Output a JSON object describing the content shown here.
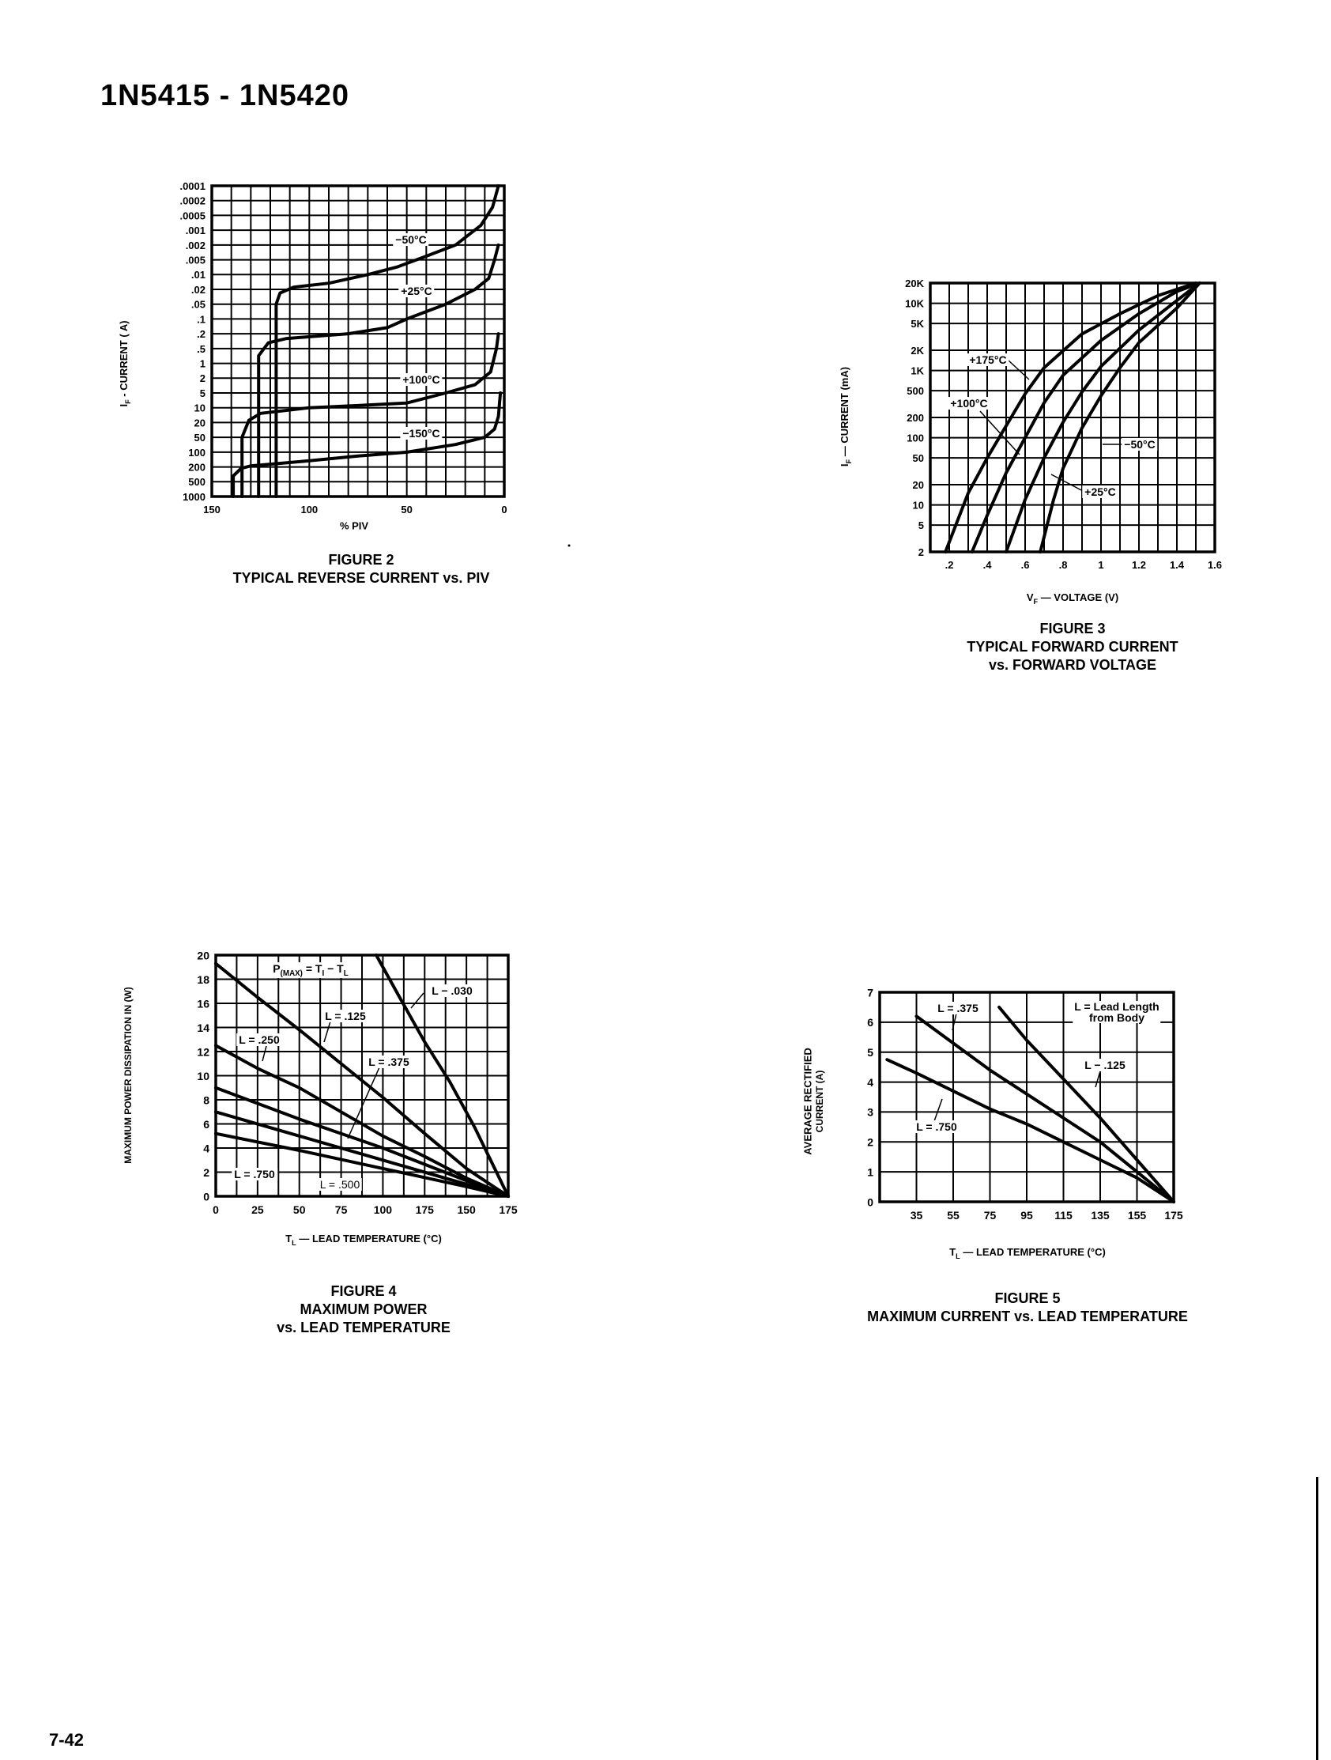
{
  "header": {
    "title": "1N5415 - 1N5420"
  },
  "footer": {
    "page_number": "7-42"
  },
  "chart_data": [
    {
      "figure": "FIGURE 2",
      "title": "TYPICAL REVERSE CURRENT vs. PIV",
      "type": "line",
      "xlabel": "% PIV",
      "ylabel": {
        "prefix": "I",
        "sub": "F",
        "rest": " - CURRENT ( A)"
      },
      "x_ticks": [
        "150",
        "100",
        "50",
        "0"
      ],
      "xlim": [
        150,
        0
      ],
      "y_ticks": [
        ".0001",
        ".0002",
        ".0005",
        ".001",
        ".002",
        ".005",
        ".01",
        ".02",
        ".05",
        ".1",
        ".2",
        ".5",
        "1",
        "2",
        "5",
        "10",
        "20",
        "50",
        "100",
        "200",
        "500",
        "1000"
      ],
      "y_scale": "log",
      "ylim": [
        0.0001,
        1000
      ],
      "y_direction": "increasing downward",
      "grid": true,
      "series": [
        {
          "name": "−50°C",
          "points": [
            [
              117,
              1000
            ],
            [
              117,
              0.05
            ],
            [
              115,
              0.025
            ],
            [
              108,
              0.018
            ],
            [
              90,
              0.015
            ],
            [
              70,
              0.01
            ],
            [
              55,
              0.007
            ],
            [
              40,
              0.004
            ],
            [
              25,
              0.002
            ],
            [
              12,
              0.0008
            ],
            [
              6,
              0.0003
            ],
            [
              3,
              0.0001
            ]
          ]
        },
        {
          "name": "+25°C",
          "points": [
            [
              126,
              1000
            ],
            [
              126,
              0.7
            ],
            [
              121,
              0.35
            ],
            [
              112,
              0.27
            ],
            [
              100,
              0.24
            ],
            [
              80,
              0.2
            ],
            [
              60,
              0.15
            ],
            [
              50,
              0.1
            ],
            [
              30,
              0.05
            ],
            [
              15,
              0.02
            ],
            [
              8,
              0.012
            ],
            [
              5,
              0.005
            ],
            [
              3,
              0.002
            ]
          ]
        },
        {
          "name": "+100°C",
          "points": [
            [
              134.5,
              1000
            ],
            [
              134.5,
              50
            ],
            [
              131,
              18
            ],
            [
              125,
              13
            ],
            [
              100,
              10
            ],
            [
              75,
              9
            ],
            [
              50,
              8
            ],
            [
              30,
              5
            ],
            [
              15,
              3
            ],
            [
              7,
              1.5
            ],
            [
              4,
              0.5
            ],
            [
              3,
              0.2
            ]
          ]
        },
        {
          "name": "−150°C",
          "points": [
            [
              139,
              1000
            ],
            [
              139,
              350
            ],
            [
              135,
              220
            ],
            [
              130,
              190
            ],
            [
              100,
              150
            ],
            [
              75,
              120
            ],
            [
              50,
              100
            ],
            [
              25,
              70
            ],
            [
              10,
              50
            ],
            [
              5,
              30
            ],
            [
              3,
              15
            ],
            [
              2,
              5
            ]
          ]
        }
      ]
    },
    {
      "figure": "FIGURE 3",
      "title": "TYPICAL FORWARD CURRENT",
      "title_line2": "vs. FORWARD VOLTAGE",
      "type": "line",
      "xlabel": {
        "prefix": "V",
        "sub": "F",
        "rest": " — VOLTAGE (V)"
      },
      "ylabel": {
        "prefix": "I",
        "sub": "F",
        "rest": " — CURRENT (mA)"
      },
      "x_ticks": [
        ".2",
        ".4",
        ".6",
        ".8",
        "1",
        "1.2",
        "1.4",
        "1.6"
      ],
      "xlim": [
        0.1,
        1.6
      ],
      "y_ticks": [
        "20K",
        "10K",
        "5K",
        "2K",
        "1K",
        "500",
        "200",
        "100",
        "50",
        "20",
        "10",
        "5",
        "2"
      ],
      "y_scale": "log",
      "ylim": [
        2,
        20000
      ],
      "grid": true,
      "series": [
        {
          "name": "+175°C",
          "points": [
            [
              0.18,
              2
            ],
            [
              0.3,
              15
            ],
            [
              0.4,
              50
            ],
            [
              0.5,
              150
            ],
            [
              0.6,
              450
            ],
            [
              0.7,
              1100
            ],
            [
              0.9,
              3500
            ],
            [
              1.1,
              7000
            ],
            [
              1.3,
              13000
            ],
            [
              1.5,
              20000
            ]
          ]
        },
        {
          "name": "+100°C",
          "points": [
            [
              0.32,
              2
            ],
            [
              0.4,
              7
            ],
            [
              0.5,
              30
            ],
            [
              0.6,
              100
            ],
            [
              0.7,
              330
            ],
            [
              0.8,
              850
            ],
            [
              1.0,
              2800
            ],
            [
              1.2,
              7000
            ],
            [
              1.4,
              15000
            ],
            [
              1.52,
              20000
            ]
          ]
        },
        {
          "name": "+25°C",
          "points": [
            [
              0.5,
              2
            ],
            [
              0.6,
              12
            ],
            [
              0.7,
              50
            ],
            [
              0.8,
              170
            ],
            [
              0.9,
              480
            ],
            [
              1.0,
              1150
            ],
            [
              1.2,
              4000
            ],
            [
              1.4,
              11000
            ],
            [
              1.52,
              20000
            ]
          ]
        },
        {
          "name": "−50°C",
          "points": [
            [
              0.68,
              2
            ],
            [
              0.75,
              12
            ],
            [
              0.8,
              35
            ],
            [
              0.9,
              140
            ],
            [
              1.0,
              420
            ],
            [
              1.1,
              1100
            ],
            [
              1.2,
              2600
            ],
            [
              1.4,
              8500
            ],
            [
              1.52,
              20000
            ]
          ]
        }
      ]
    },
    {
      "figure": "FIGURE 4",
      "title": "MAXIMUM POWER",
      "title_line2": "vs. LEAD TEMPERATURE",
      "type": "line",
      "xlabel": {
        "prefix": "T",
        "sub": "L",
        "rest": " — LEAD TEMPERATURE (°C)"
      },
      "ylabel": "MAXIMUM POWER DISSIPATION IN (W)",
      "x_ticks": [
        "0",
        "25",
        "50",
        "75",
        "100",
        "175",
        "150",
        "175"
      ],
      "xlim": [
        0,
        175
      ],
      "y_ticks": [
        "20",
        "18",
        "16",
        "14",
        "12",
        "10",
        "8",
        "6",
        "4",
        "2",
        "0"
      ],
      "ylim": [
        0,
        20
      ],
      "grid": true,
      "annotation": [
        {
          "t": "P",
          "sub": false
        },
        {
          "t": "(MAX)",
          "sub": true
        },
        {
          "t": " = T",
          "sub": false
        },
        {
          "t": "I",
          "sub": true
        },
        {
          "t": " − T",
          "sub": false
        },
        {
          "t": "L",
          "sub": true
        }
      ],
      "series": [
        {
          "name": "L − .030",
          "points": [
            [
              96,
              20
            ],
            [
              110,
              16.5
            ],
            [
              125,
              12.8
            ],
            [
              140,
              9.5
            ],
            [
              155,
              5.7
            ],
            [
              175,
              0
            ]
          ]
        },
        {
          "name": "L = .125",
          "points": [
            [
              0,
              19.3
            ],
            [
              25,
              16.5
            ],
            [
              50,
              13.8
            ],
            [
              75,
              11
            ],
            [
              100,
              8.2
            ],
            [
              125,
              5.2
            ],
            [
              150,
              2.3
            ],
            [
              175,
              0
            ]
          ]
        },
        {
          "name": "L = .250",
          "points": [
            [
              0,
              12.5
            ],
            [
              25,
              10.6
            ],
            [
              50,
              9
            ],
            [
              75,
              7
            ],
            [
              100,
              5
            ],
            [
              125,
              3.3
            ],
            [
              150,
              1.5
            ],
            [
              175,
              0
            ]
          ]
        },
        {
          "name": "L = .375",
          "points": [
            [
              0,
              9
            ],
            [
              50,
              6.4
            ],
            [
              100,
              4
            ],
            [
              150,
              1.3
            ],
            [
              175,
              0
            ]
          ]
        },
        {
          "name": "L = .500",
          "points": [
            [
              0,
              7
            ],
            [
              50,
              5
            ],
            [
              100,
              3
            ],
            [
              150,
              1
            ],
            [
              175,
              0
            ]
          ]
        },
        {
          "name": "L = .750",
          "points": [
            [
              0,
              5.2
            ],
            [
              50,
              3.8
            ],
            [
              100,
              2.3
            ],
            [
              150,
              0.8
            ],
            [
              175,
              0
            ]
          ]
        }
      ]
    },
    {
      "figure": "FIGURE 5",
      "title": "MAXIMUM CURRENT vs. LEAD TEMPERATURE",
      "type": "line",
      "xlabel": {
        "prefix": "T",
        "sub": "L",
        "rest": " — LEAD TEMPERATURE (°C)"
      },
      "ylabel": [
        "AVERAGE RECTIFIED",
        "CURRENT (A)"
      ],
      "x_ticks": [
        "35",
        "55",
        "75",
        "95",
        "115",
        "135",
        "155",
        "175"
      ],
      "xlim": [
        15,
        175
      ],
      "y_ticks": [
        "7",
        "6",
        "5",
        "4",
        "3",
        "2",
        "1",
        "0"
      ],
      "ylim": [
        0,
        7
      ],
      "grid": true,
      "legend_note": [
        "L = Lead Length",
        "from Body"
      ],
      "series": [
        {
          "name": "L = .375",
          "points": [
            [
              35,
              6.2
            ],
            [
              55,
              5.3
            ],
            [
              75,
              4.4
            ],
            [
              95,
              3.6
            ],
            [
              115,
              2.8
            ],
            [
              135,
              2
            ],
            [
              155,
              1
            ],
            [
              175,
              0
            ]
          ]
        },
        {
          "name": "L − .125",
          "points": [
            [
              80,
              6.5
            ],
            [
              95,
              5.4
            ],
            [
              115,
              4.1
            ],
            [
              135,
              2.8
            ],
            [
              155,
              1.4
            ],
            [
              175,
              0
            ]
          ]
        },
        {
          "name": "L = .750",
          "points": [
            [
              19,
              4.75
            ],
            [
              35,
              4.3
            ],
            [
              55,
              3.7
            ],
            [
              75,
              3.1
            ],
            [
              95,
              2.6
            ],
            [
              115,
              2
            ],
            [
              135,
              1.4
            ],
            [
              155,
              0.8
            ],
            [
              175,
              0
            ]
          ]
        }
      ]
    }
  ]
}
